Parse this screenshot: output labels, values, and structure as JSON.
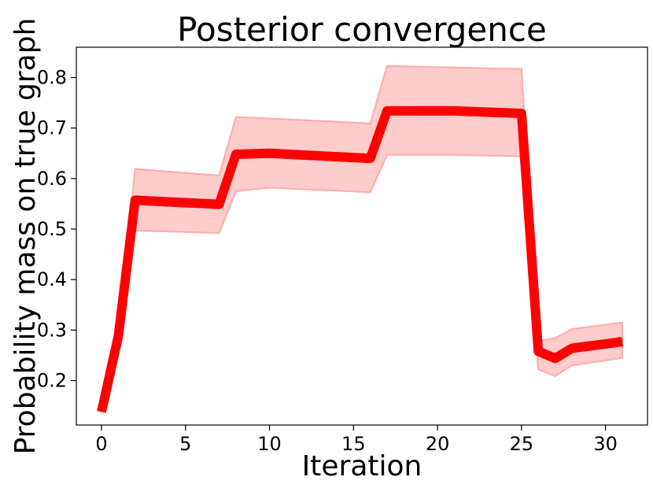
{
  "chart_data": {
    "type": "line",
    "title": "Posterior convergence",
    "xlabel": "Iteration",
    "ylabel": "Probability mass on true graph",
    "xlim": [
      -1.5,
      32.5
    ],
    "ylim": [
      0.112,
      0.86
    ],
    "xticks": [
      0,
      5,
      10,
      15,
      20,
      25,
      30
    ],
    "yticks": [
      0.2,
      0.3,
      0.4,
      0.5,
      0.6,
      0.7,
      0.8
    ],
    "ytick_labels": [
      "0.2",
      "0.3",
      "0.4",
      "0.5",
      "0.6",
      "0.7",
      "0.8"
    ],
    "grid": false,
    "line_color": "#ff0000",
    "band_color": "#ffcccc",
    "series": [
      {
        "x": [
          0,
          1,
          2,
          7,
          8,
          10,
          16,
          17,
          21,
          25,
          26,
          27,
          28,
          31
        ],
        "values": [
          0.138,
          0.288,
          0.557,
          0.549,
          0.648,
          0.65,
          0.64,
          0.734,
          0.734,
          0.729,
          0.258,
          0.244,
          0.264,
          0.277
        ],
        "upper": [
          0.138,
          0.288,
          0.619,
          0.606,
          0.722,
          0.719,
          0.709,
          0.823,
          0.82,
          0.817,
          0.278,
          0.284,
          0.302,
          0.315
        ],
        "lower": [
          0.138,
          0.288,
          0.497,
          0.492,
          0.575,
          0.582,
          0.573,
          0.647,
          0.647,
          0.644,
          0.222,
          0.209,
          0.23,
          0.245
        ]
      }
    ]
  }
}
